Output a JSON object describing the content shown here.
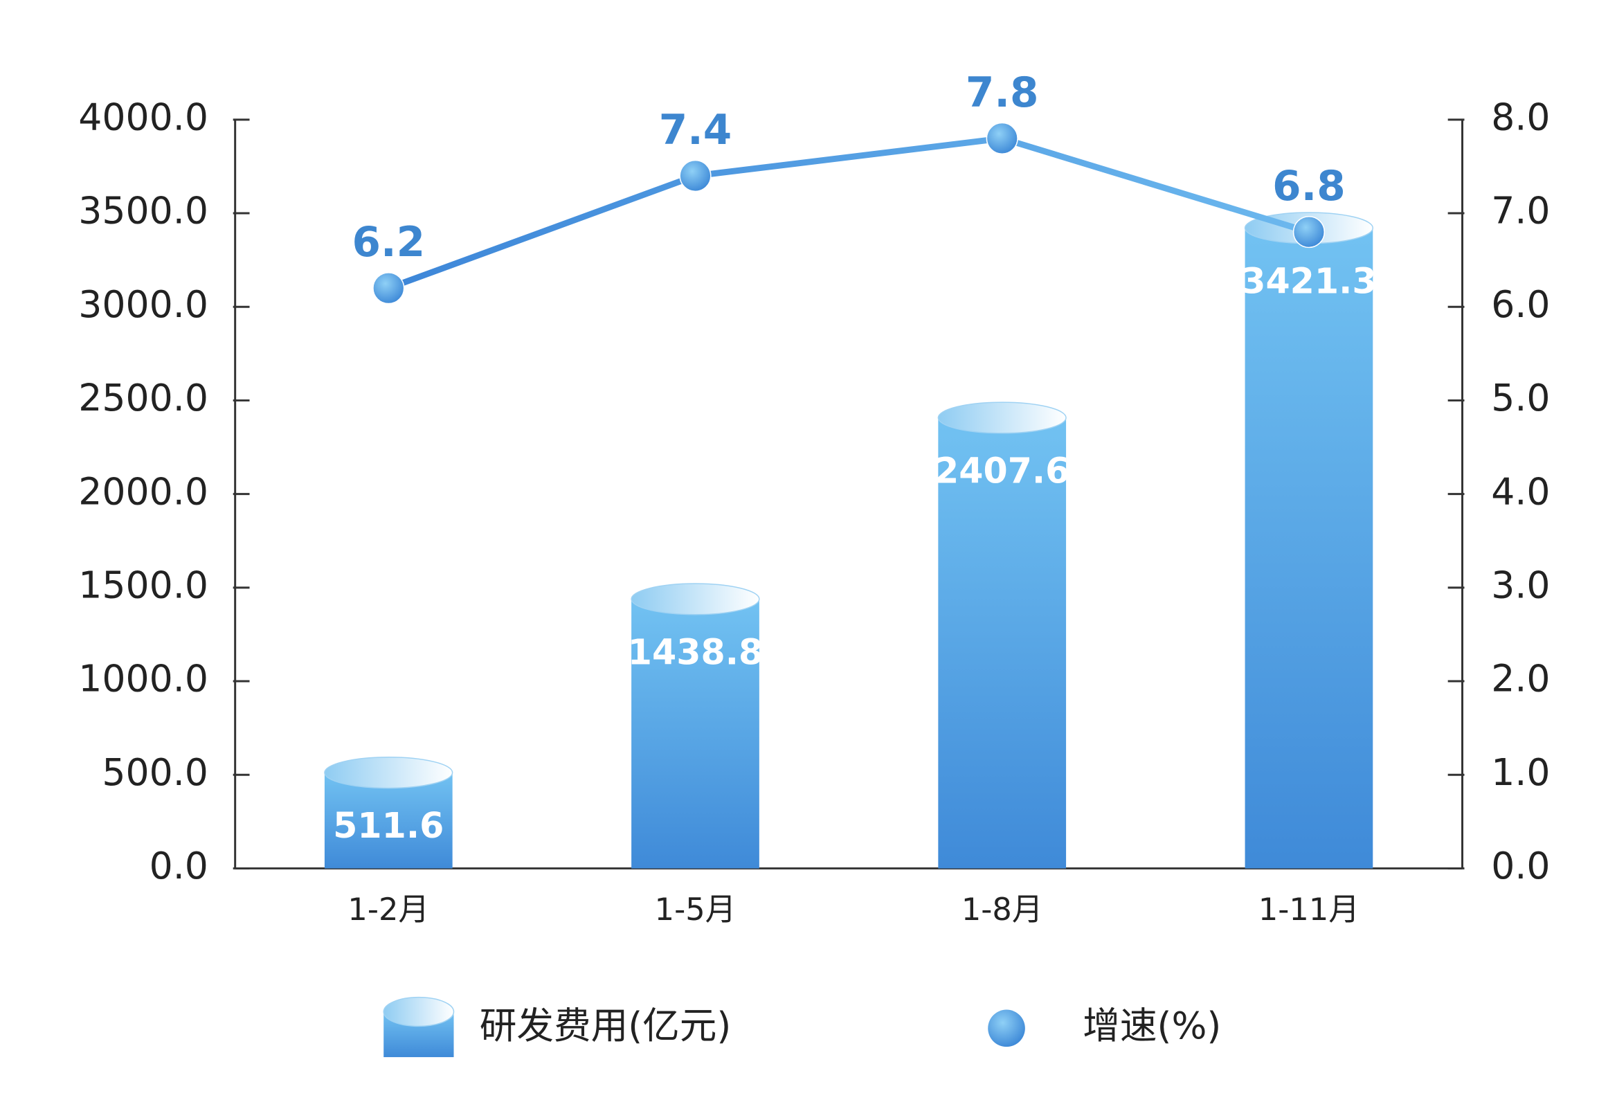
{
  "chart_data": {
    "type": "bar-line",
    "categories": [
      "1-2月",
      "1-5月",
      "1-8月",
      "1-11月"
    ],
    "series": [
      {
        "name": "研发费用(亿元)",
        "type": "bar",
        "color": "#4a9be0",
        "values": [
          511.6,
          1438.8,
          2407.6,
          3421.3
        ]
      },
      {
        "name": "增速(%)",
        "type": "line",
        "axis": "y2",
        "color": "#4a9be0",
        "values": [
          6.2,
          7.4,
          7.8,
          6.8
        ]
      }
    ],
    "ylim": [
      0,
      4000
    ],
    "yticks": [
      {
        "value": 0,
        "label": "0.0"
      },
      {
        "value": 500,
        "label": "500.0"
      },
      {
        "value": 1000,
        "label": "1000.0"
      },
      {
        "value": 1500,
        "label": "1500.0"
      },
      {
        "value": 2000,
        "label": "2000.0"
      },
      {
        "value": 2500,
        "label": "2500.0"
      },
      {
        "value": 3000,
        "label": "3000.0"
      },
      {
        "value": 3500,
        "label": "3500.0"
      },
      {
        "value": 4000,
        "label": "4000.0"
      }
    ],
    "y2lim": [
      0,
      8
    ],
    "y2ticks": [
      {
        "value": 0,
        "label": "0.0"
      },
      {
        "value": 1,
        "label": "1.0"
      },
      {
        "value": 2,
        "label": "2.0"
      },
      {
        "value": 3,
        "label": "3.0"
      },
      {
        "value": 4,
        "label": "4.0"
      },
      {
        "value": 5,
        "label": "5.0"
      },
      {
        "value": 6,
        "label": "6.0"
      },
      {
        "value": 7,
        "label": "7.0"
      },
      {
        "value": 8,
        "label": "8.0"
      }
    ],
    "legend": "bottom"
  }
}
